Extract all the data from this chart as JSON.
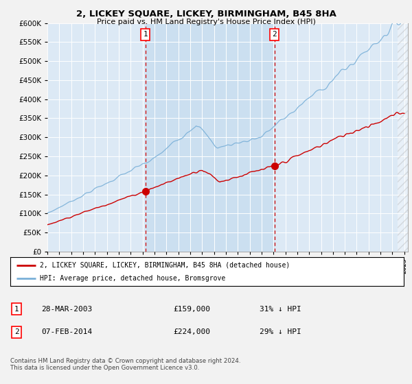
{
  "title": "2, LICKEY SQUARE, LICKEY, BIRMINGHAM, B45 8HA",
  "subtitle": "Price paid vs. HM Land Registry's House Price Index (HPI)",
  "plot_bg_color": "#dce9f5",
  "fig_bg_color": "#f2f2f2",
  "hpi_color": "#7ab0d8",
  "price_color": "#cc0000",
  "vline_color": "#cc0000",
  "shade_color": "#c5dbee",
  "sale1_x": 2003.23,
  "sale2_x": 2014.09,
  "sale1_price": 159000,
  "sale2_price": 224000,
  "legend1": "2, LICKEY SQUARE, LICKEY, BIRMINGHAM, B45 8HA (detached house)",
  "legend2": "HPI: Average price, detached house, Bromsgrove",
  "table_row1": [
    "1",
    "28-MAR-2003",
    "£159,000",
    "31% ↓ HPI"
  ],
  "table_row2": [
    "2",
    "07-FEB-2014",
    "£224,000",
    "29% ↓ HPI"
  ],
  "footnote": "Contains HM Land Registry data © Crown copyright and database right 2024.\nThis data is licensed under the Open Government Licence v3.0.",
  "ylim": [
    0,
    600000
  ],
  "yticks": [
    0,
    50000,
    100000,
    150000,
    200000,
    250000,
    300000,
    350000,
    400000,
    450000,
    500000,
    550000,
    600000
  ],
  "xlim_start": 1995.0,
  "xlim_end": 2025.3
}
